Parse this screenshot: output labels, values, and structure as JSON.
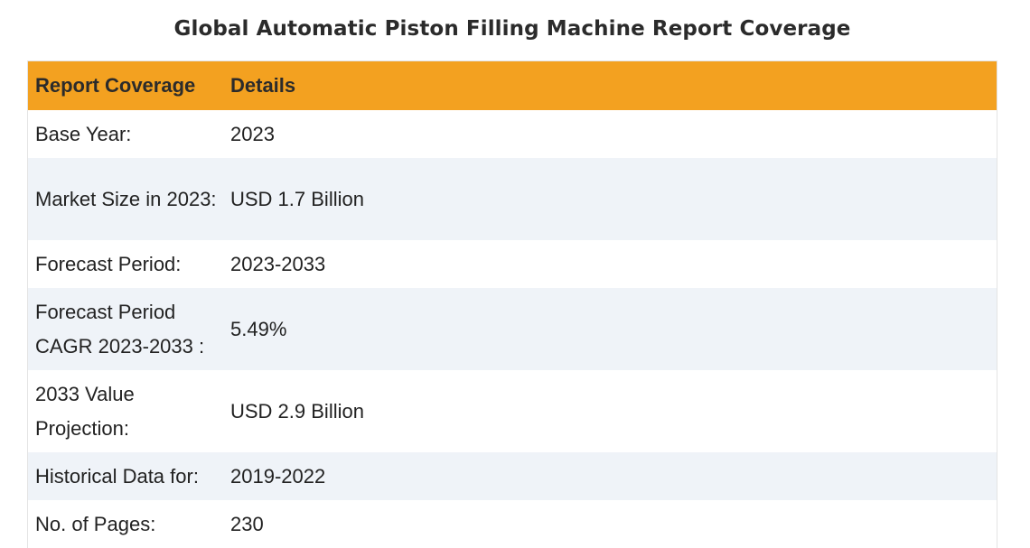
{
  "title": "Global Automatic Piston Filling Machine Report Coverage",
  "table": {
    "headers": {
      "key": "Report Coverage",
      "value": "Details"
    },
    "rows": [
      {
        "key": "Base Year:",
        "value": "2023"
      },
      {
        "key": "Market Size in 2023:",
        "value": "USD 1.7 Billion"
      },
      {
        "key": "Forecast Period:",
        "value": "2023-2033"
      },
      {
        "key": "Forecast Period CAGR 2023-2033 :",
        "value": "5.49%"
      },
      {
        "key": "2033 Value Projection:",
        "value": "USD 2.9 Billion"
      },
      {
        "key": "Historical Data for:",
        "value": "2019-2022"
      },
      {
        "key": "No. of Pages:",
        "value": "230"
      }
    ]
  },
  "colors": {
    "header_bg": "#f3a120",
    "stripe_bg": "#eff3f8",
    "text": "#222222"
  }
}
